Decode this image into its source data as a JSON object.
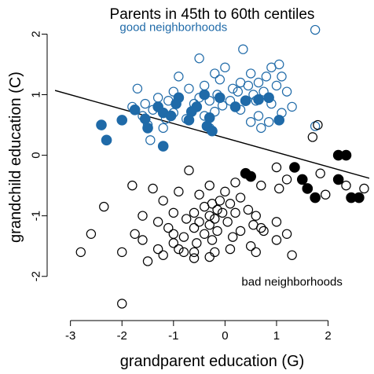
{
  "chart_data": {
    "type": "scatter",
    "title": "Parents in 45th to 60th centiles",
    "xlabel": "grandparent education (G)",
    "ylabel": "grandchild education (C)",
    "xlim": [
      -3.3,
      2.8
    ],
    "ylim": [
      -2.6,
      2.2
    ],
    "xticks": [
      -3,
      -2,
      -1,
      0,
      1,
      2
    ],
    "yticks": [
      -2,
      -1,
      0,
      1,
      2
    ],
    "xtick_labels": [
      "-3",
      "-2",
      "-1",
      "0",
      "1",
      "2"
    ],
    "ytick_labels": [
      "-2",
      "-1",
      "0",
      "1",
      "2"
    ],
    "colors": {
      "good": "#1f6aa8",
      "bad": "#000000",
      "line": "#000000"
    },
    "annotations": [
      {
        "name": "good-label",
        "text": "good neighborhoods",
        "x": -1.0,
        "y": 2.05,
        "group": "good"
      },
      {
        "name": "bad-label",
        "text": "bad neighborhoods",
        "x": 1.3,
        "y": -2.15,
        "group": "bad"
      }
    ],
    "fit_line": {
      "x1": -3.3,
      "y1": 1.07,
      "x2": 2.8,
      "y2": -0.38
    },
    "series": [
      {
        "group": "good",
        "filled": false,
        "points": [
          [
            1.75,
            2.07
          ],
          [
            0.35,
            1.75
          ],
          [
            -0.5,
            1.6
          ],
          [
            0.0,
            1.45
          ],
          [
            0.9,
            1.45
          ],
          [
            1.05,
            1.5
          ],
          [
            0.5,
            1.35
          ],
          [
            -0.2,
            1.35
          ],
          [
            0.8,
            1.3
          ],
          [
            1.1,
            1.3
          ],
          [
            -0.9,
            1.3
          ],
          [
            -0.1,
            1.25
          ],
          [
            0.3,
            1.2
          ],
          [
            0.45,
            1.15
          ],
          [
            0.65,
            1.2
          ],
          [
            1.0,
            1.15
          ],
          [
            -0.7,
            1.1
          ],
          [
            -1.7,
            1.1
          ],
          [
            -0.4,
            1.15
          ],
          [
            0.15,
            1.1
          ],
          [
            0.25,
            1.05
          ],
          [
            0.75,
            1.05
          ],
          [
            1.2,
            1.05
          ],
          [
            -1.0,
            1.05
          ],
          [
            -0.15,
            1.0
          ],
          [
            0.55,
            1.0
          ],
          [
            -1.3,
            0.95
          ],
          [
            -0.5,
            0.95
          ],
          [
            -0.3,
            0.9
          ],
          [
            0.1,
            0.9
          ],
          [
            0.6,
            0.9
          ],
          [
            -1.1,
            0.9
          ],
          [
            -1.55,
            0.85
          ],
          [
            -1.8,
            0.8
          ],
          [
            -0.6,
            0.85
          ],
          [
            -0.05,
            0.82
          ],
          [
            0.9,
            0.85
          ],
          [
            1.3,
            0.8
          ],
          [
            -1.4,
            0.75
          ],
          [
            -0.2,
            0.72
          ],
          [
            0.3,
            0.75
          ],
          [
            -1.0,
            0.7
          ],
          [
            -1.6,
            0.65
          ],
          [
            -0.4,
            0.65
          ],
          [
            0.65,
            0.65
          ],
          [
            1.1,
            0.7
          ],
          [
            -1.15,
            0.6
          ],
          [
            -0.75,
            0.6
          ],
          [
            0.5,
            0.55
          ],
          [
            0.85,
            0.55
          ],
          [
            -1.5,
            0.5
          ],
          [
            -0.3,
            0.45
          ],
          [
            -1.2,
            0.45
          ],
          [
            0.7,
            0.45
          ],
          [
            1.75,
            0.48
          ],
          [
            -1.45,
            0.25
          ]
        ]
      },
      {
        "group": "good",
        "filled": true,
        "points": [
          [
            -0.4,
            1.0
          ],
          [
            -0.9,
            0.95
          ],
          [
            -0.1,
            0.95
          ],
          [
            0.4,
            0.9
          ],
          [
            0.65,
            0.92
          ],
          [
            0.85,
            0.95
          ],
          [
            -0.95,
            0.85
          ],
          [
            -1.3,
            0.8
          ],
          [
            -0.55,
            0.8
          ],
          [
            0.2,
            0.8
          ],
          [
            -1.75,
            0.75
          ],
          [
            -1.2,
            0.7
          ],
          [
            -0.65,
            0.72
          ],
          [
            -1.05,
            0.65
          ],
          [
            -0.3,
            0.62
          ],
          [
            -1.55,
            0.6
          ],
          [
            -0.7,
            0.58
          ],
          [
            -2.0,
            0.58
          ],
          [
            -0.35,
            0.48
          ],
          [
            -2.4,
            0.5
          ],
          [
            -1.5,
            0.45
          ],
          [
            -0.25,
            0.4
          ],
          [
            1.05,
            0.58
          ],
          [
            -2.3,
            0.25
          ],
          [
            -1.2,
            0.15
          ]
        ]
      },
      {
        "group": "bad",
        "filled": true,
        "points": [
          [
            0.4,
            -0.3
          ],
          [
            0.5,
            -0.35
          ],
          [
            1.35,
            -0.2
          ],
          [
            2.2,
            0.0
          ],
          [
            2.35,
            0.0
          ],
          [
            1.5,
            -0.4
          ],
          [
            2.2,
            -0.4
          ],
          [
            1.6,
            -0.55
          ],
          [
            1.75,
            -0.7
          ],
          [
            2.45,
            -0.7
          ],
          [
            2.6,
            -0.7
          ]
        ]
      },
      {
        "group": "bad",
        "filled": false,
        "points": [
          [
            1.8,
            0.5
          ],
          [
            1.7,
            0.3
          ],
          [
            1.0,
            -0.2
          ],
          [
            1.85,
            -0.3
          ],
          [
            1.2,
            -0.4
          ],
          [
            1.95,
            -0.65
          ],
          [
            2.35,
            -0.5
          ],
          [
            2.7,
            -0.55
          ],
          [
            1.05,
            -0.55
          ],
          [
            0.7,
            -0.5
          ],
          [
            0.2,
            -0.45
          ],
          [
            -0.7,
            -0.25
          ],
          [
            -1.4,
            -0.55
          ],
          [
            -1.8,
            -0.5
          ],
          [
            -0.3,
            -0.5
          ],
          [
            0.0,
            -0.6
          ],
          [
            -0.9,
            -0.6
          ],
          [
            -0.5,
            -0.65
          ],
          [
            0.3,
            -0.7
          ],
          [
            -1.2,
            -0.75
          ],
          [
            -0.1,
            -0.75
          ],
          [
            -0.25,
            -0.8
          ],
          [
            0.1,
            -0.8
          ],
          [
            -0.4,
            -0.85
          ],
          [
            -0.15,
            -0.9
          ],
          [
            0.45,
            -0.9
          ],
          [
            -0.05,
            -0.95
          ],
          [
            -1.0,
            -0.95
          ],
          [
            -0.6,
            -0.95
          ],
          [
            0.2,
            -0.95
          ],
          [
            -0.3,
            -1.0
          ],
          [
            -1.6,
            -1.0
          ],
          [
            0.6,
            -1.0
          ],
          [
            -0.75,
            -1.05
          ],
          [
            -0.2,
            -1.05
          ],
          [
            0.05,
            -1.1
          ],
          [
            -1.3,
            -1.1
          ],
          [
            -0.5,
            -1.1
          ],
          [
            1.0,
            -1.1
          ],
          [
            -0.3,
            -1.15
          ],
          [
            0.55,
            -1.15
          ],
          [
            -1.1,
            -1.2
          ],
          [
            0.7,
            -1.2
          ],
          [
            -0.6,
            -1.2
          ],
          [
            -0.15,
            -1.25
          ],
          [
            0.3,
            -1.25
          ],
          [
            -1.0,
            -1.3
          ],
          [
            -0.4,
            -1.3
          ],
          [
            0.75,
            -1.25
          ],
          [
            1.2,
            -1.3
          ],
          [
            -0.8,
            -1.35
          ],
          [
            0.15,
            -1.35
          ],
          [
            -0.25,
            -1.4
          ],
          [
            -1.6,
            -1.4
          ],
          [
            1.0,
            -1.4
          ],
          [
            -1.0,
            -1.45
          ],
          [
            -0.55,
            -1.45
          ],
          [
            0.5,
            -1.5
          ],
          [
            -1.3,
            -1.55
          ],
          [
            -0.8,
            -1.6
          ],
          [
            -1.2,
            -1.65
          ],
          [
            -0.6,
            -1.6
          ],
          [
            -0.2,
            -1.6
          ],
          [
            0.1,
            -1.55
          ],
          [
            0.6,
            -1.6
          ],
          [
            -1.5,
            -1.75
          ],
          [
            -0.6,
            -1.7
          ],
          [
            -0.3,
            -1.68
          ],
          [
            1.3,
            -1.65
          ],
          [
            -0.9,
            -1.55
          ],
          [
            -2.8,
            -1.6
          ],
          [
            -2.0,
            -2.45
          ],
          [
            -2.6,
            -1.3
          ],
          [
            -2.35,
            -0.85
          ],
          [
            -1.75,
            -1.3
          ],
          [
            -2.0,
            -1.6
          ]
        ]
      }
    ]
  }
}
